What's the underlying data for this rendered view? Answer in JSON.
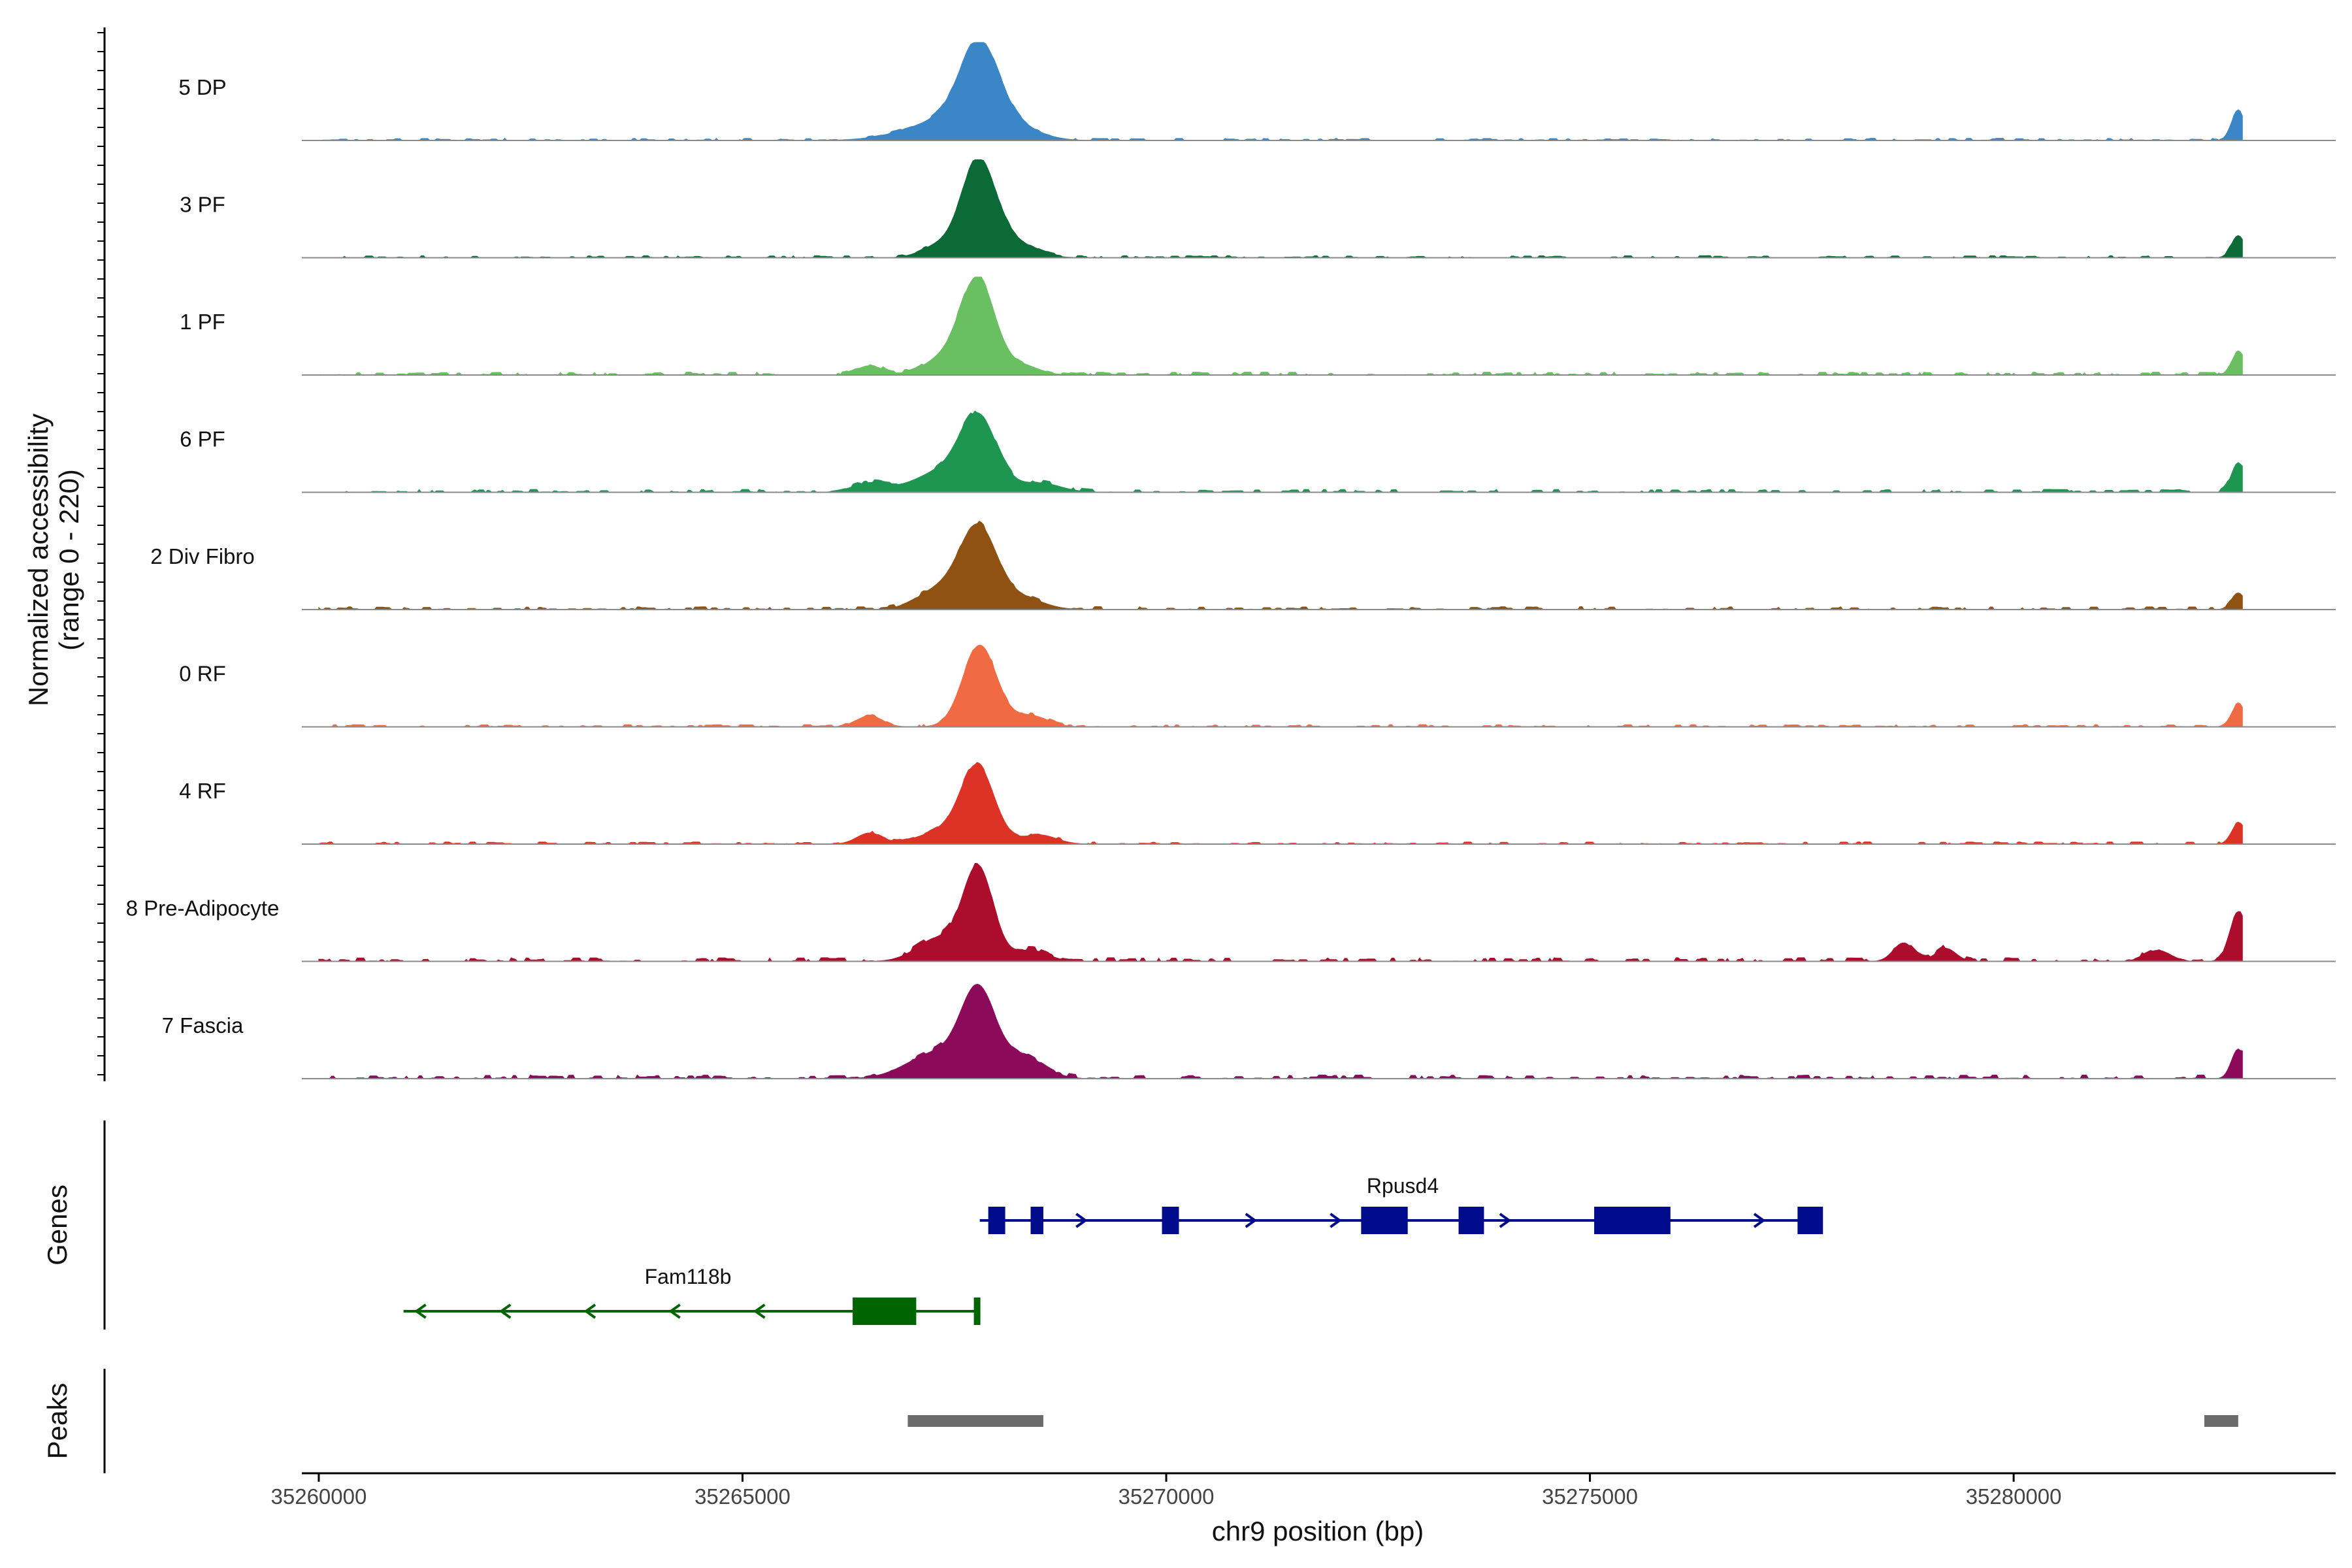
{
  "chart_data": {
    "type": "area",
    "title": "",
    "xlabel": "chr9 position (bp)",
    "ylabel": "Normalized accessibility",
    "ylabel_range": "(range 0 - 220)",
    "ylim": [
      0,
      220
    ],
    "xlim": [
      35259800,
      35283800
    ],
    "x_ticks": [
      35260000,
      35265000,
      35270000,
      35275000,
      35280000
    ],
    "x_tick_labels": [
      "35260000",
      "35265000",
      "35270000",
      "35275000",
      "35280000"
    ],
    "grid": false,
    "series": [
      {
        "name": "5 DP",
        "color": "#3A86C6",
        "peaks": [
          [
            35267800,
            220,
            230
          ],
          [
            35267500,
            60,
            500
          ],
          [
            35268300,
            20,
            250
          ],
          [
            35282650,
            80,
            80
          ]
        ],
        "noise": 6,
        "noise_step": 90,
        "seed": 11
      },
      {
        "name": "3 PF",
        "color": "#0B6A35",
        "peaks": [
          [
            35267780,
            260,
            200
          ],
          [
            35267300,
            30,
            200
          ],
          [
            35268200,
            40,
            250
          ],
          [
            35282650,
            60,
            80
          ]
        ],
        "noise": 6,
        "noise_step": 90,
        "seed": 23
      },
      {
        "name": "1 PF",
        "color": "#6ABF63",
        "peaks": [
          [
            35267780,
            250,
            200
          ],
          [
            35267400,
            45,
            250
          ],
          [
            35266500,
            25,
            150
          ],
          [
            35268300,
            25,
            200
          ],
          [
            35282650,
            60,
            80
          ]
        ],
        "noise": 8,
        "noise_step": 80,
        "seed": 31
      },
      {
        "name": "6 PF",
        "color": "#1E9652",
        "peaks": [
          [
            35267780,
            200,
            220
          ],
          [
            35267300,
            50,
            300
          ],
          [
            35266500,
            25,
            200
          ],
          [
            35268500,
            25,
            250
          ],
          [
            35282650,
            80,
            80
          ]
        ],
        "noise": 8,
        "noise_step": 80,
        "seed": 43
      },
      {
        "name": "2 Div Fibro",
        "color": "#8F5212",
        "peaks": [
          [
            35267780,
            220,
            220
          ],
          [
            35267300,
            50,
            250
          ],
          [
            35268300,
            30,
            250
          ],
          [
            35282650,
            45,
            80
          ]
        ],
        "noise": 8,
        "noise_step": 70,
        "seed": 53
      },
      {
        "name": "0 RF",
        "color": "#F06A43",
        "peaks": [
          [
            35267800,
            220,
            200
          ],
          [
            35266500,
            30,
            150
          ],
          [
            35268400,
            30,
            200
          ],
          [
            35282650,
            60,
            80
          ]
        ],
        "noise": 6,
        "noise_step": 80,
        "seed": 61
      },
      {
        "name": "4 RF",
        "color": "#DC3326",
        "peaks": [
          [
            35267770,
            210,
            200
          ],
          [
            35267300,
            30,
            250
          ],
          [
            35266500,
            30,
            150
          ],
          [
            35268500,
            25,
            200
          ],
          [
            35282650,
            55,
            80
          ]
        ],
        "noise": 6,
        "noise_step": 80,
        "seed": 71
      },
      {
        "name": "8 Pre-Adipocyte",
        "color": "#AD0D2C",
        "peaks": [
          [
            35267780,
            250,
            180
          ],
          [
            35267300,
            60,
            250
          ],
          [
            35268400,
            30,
            200
          ],
          [
            35282650,
            130,
            100
          ],
          [
            35278700,
            50,
            120
          ],
          [
            35279200,
            35,
            120
          ],
          [
            35281700,
            30,
            150
          ]
        ],
        "noise": 10,
        "noise_step": 120,
        "seed": 83
      },
      {
        "name": "7 Fascia",
        "color": "#8C0A5A",
        "peaks": [
          [
            35267780,
            220,
            200
          ],
          [
            35267300,
            70,
            350
          ],
          [
            35268300,
            60,
            250
          ],
          [
            35282650,
            80,
            80
          ]
        ],
        "noise": 10,
        "noise_step": 70,
        "seed": 97
      }
    ],
    "genes_axis_label": "Genes",
    "genes": [
      {
        "name": "Rpusd4",
        "color": "#000C8C",
        "strand": "+",
        "start": 35267800,
        "end": 35277700,
        "exons": [
          [
            35267900,
            35268100
          ],
          [
            35268400,
            35268550
          ],
          [
            35269950,
            35270150
          ],
          [
            35272300,
            35272850
          ],
          [
            35273450,
            35273750
          ],
          [
            35275050,
            35275950
          ],
          [
            35277450,
            35277750
          ]
        ]
      },
      {
        "name": "Fam118b",
        "color": "#006400",
        "strand": "-",
        "start": 35261000,
        "end": 35267800,
        "exons": [
          [
            35266300,
            35267050
          ],
          [
            35267730,
            35267800
          ]
        ]
      }
    ],
    "peaks_axis_label": "Peaks",
    "peaks_color": "#6B6B6B",
    "peaks": [
      [
        35266950,
        35268550
      ],
      [
        35282250,
        35282650
      ]
    ]
  }
}
